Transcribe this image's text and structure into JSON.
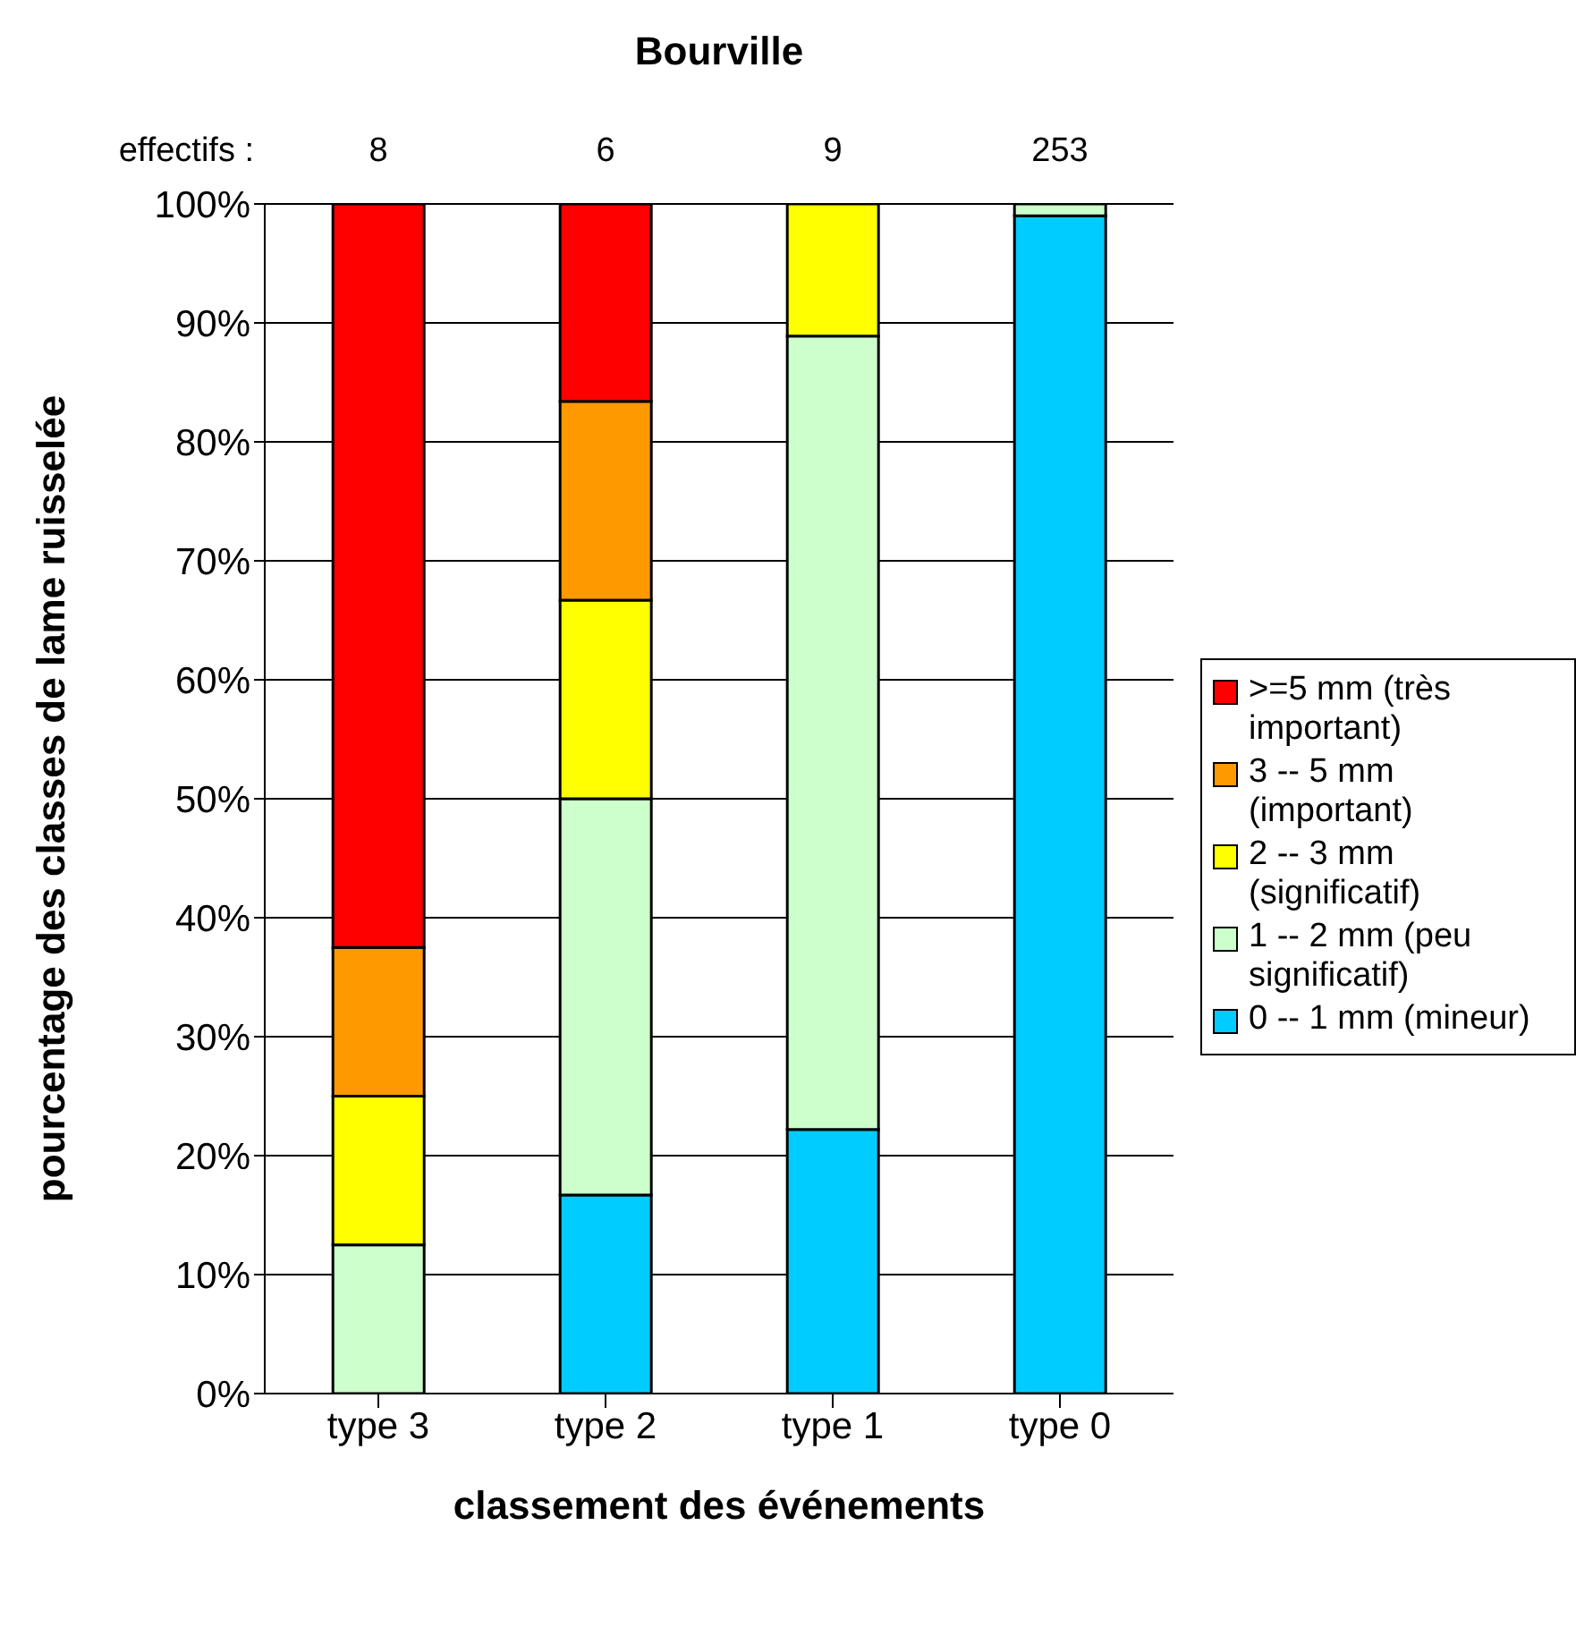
{
  "chart_data": {
    "type": "bar",
    "title": "Bourville",
    "xlabel": "classement des événements",
    "ylabel": "pourcentage des classes de lame ruisselée",
    "categories": [
      "type 3",
      "type 2",
      "type 1",
      "type 0"
    ],
    "series": [
      {
        "name": "0 -- 1 mm (mineur)",
        "color": "#00ccff",
        "values": [
          0,
          16.7,
          22.2,
          99
        ]
      },
      {
        "name": "1 -- 2 mm (peu significatif)",
        "color": "#ccffcc",
        "values": [
          12.5,
          33.3,
          66.7,
          1
        ]
      },
      {
        "name": "2 -- 3 mm (significatif)",
        "color": "#ffff00",
        "values": [
          12.5,
          16.7,
          11.1,
          0
        ]
      },
      {
        "name": "3 -- 5 mm (important)",
        "color": "#ff9900",
        "values": [
          12.5,
          16.7,
          0,
          0
        ]
      },
      {
        "name": ">=5 mm (très important)",
        "color": "#ff0000",
        "values": [
          62.5,
          16.6,
          0,
          0
        ]
      }
    ],
    "stacked": true,
    "ylim": [
      0,
      100
    ],
    "yticks": [
      {
        "value": 0,
        "label": "0%"
      },
      {
        "value": 10,
        "label": "10%"
      },
      {
        "value": 20,
        "label": "20%"
      },
      {
        "value": 30,
        "label": "30%"
      },
      {
        "value": 40,
        "label": "40%"
      },
      {
        "value": 50,
        "label": "50%"
      },
      {
        "value": 60,
        "label": "60%"
      },
      {
        "value": 70,
        "label": "70%"
      },
      {
        "value": 80,
        "label": "80%"
      },
      {
        "value": 90,
        "label": "90%"
      },
      {
        "value": 100,
        "label": "100%"
      }
    ],
    "grid": "y",
    "legend": "right",
    "annotations": [
      "effectifs :",
      "8",
      "6",
      "9",
      "253"
    ]
  }
}
